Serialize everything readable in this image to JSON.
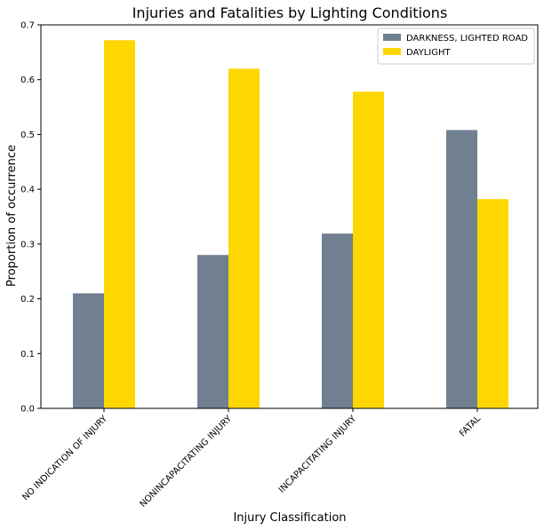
{
  "chart_data": {
    "type": "bar",
    "title": "Injuries and Fatalities by Lighting Conditions",
    "xlabel": "Injury Classification",
    "ylabel": "Proportion of occurrence",
    "categories": [
      "NO INDICATION OF INJURY",
      "NONINCAPACITATING INJURY",
      "INCAPACITATING INJURY",
      "FATAL"
    ],
    "series": [
      {
        "name": "DARKNESS, LIGHTED ROAD",
        "color": "#708090",
        "values": [
          0.21,
          0.28,
          0.319,
          0.508
        ]
      },
      {
        "name": "DAYLIGHT",
        "color": "#FFD700",
        "values": [
          0.672,
          0.62,
          0.578,
          0.382
        ]
      }
    ],
    "ylim": [
      0,
      0.7
    ],
    "yticks": [
      {
        "value": 0.0,
        "label": "0.0"
      },
      {
        "value": 0.1,
        "label": "0.1"
      },
      {
        "value": 0.2,
        "label": "0.2"
      },
      {
        "value": 0.3,
        "label": "0.3"
      },
      {
        "value": 0.4,
        "label": "0.4"
      },
      {
        "value": 0.5,
        "label": "0.5"
      },
      {
        "value": 0.6,
        "label": "0.6"
      },
      {
        "value": 0.7,
        "label": "0.7"
      }
    ],
    "grid": false,
    "legend_position": "top-right"
  }
}
